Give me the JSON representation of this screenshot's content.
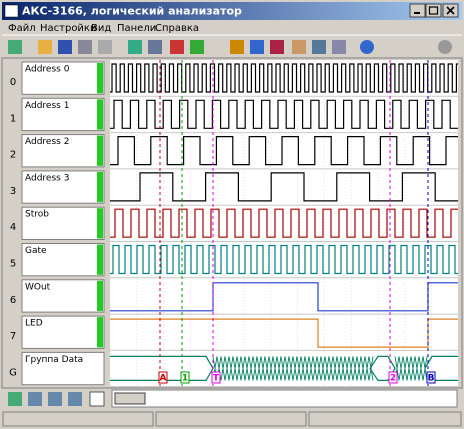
{
  "window": {
    "title": "АКС-3166, логический анализатор"
  },
  "menu": [
    "Файл",
    "Настройки",
    "Вид",
    "Панели",
    "Справка"
  ],
  "channels": [
    {
      "number": "0",
      "name": "Address 0"
    },
    {
      "number": "1",
      "name": "Address 1"
    },
    {
      "number": "2",
      "name": "Address 2"
    },
    {
      "number": "3",
      "name": "Address 3"
    },
    {
      "number": "4",
      "name": "Strob"
    },
    {
      "number": "5",
      "name": "Gate"
    },
    {
      "number": "6",
      "name": "WOut"
    },
    {
      "number": "7",
      "name": "LED"
    },
    {
      "number": "G",
      "name": "Группа Data"
    }
  ],
  "markers": [
    "A",
    "1",
    "T",
    "2",
    "B"
  ]
}
